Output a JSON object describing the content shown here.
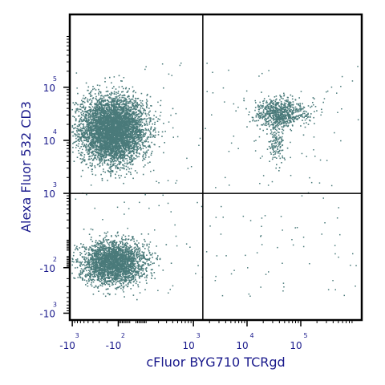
{
  "chart_data": {
    "type": "scatter",
    "title": "",
    "xlabel": "cFluor BYG710 TCRgd",
    "ylabel": "Alexa Fluor 532 CD3",
    "x_scale": "biexponential",
    "y_scale": "biexponential",
    "point_color": "#4a7a7a",
    "frame_color": "#000000",
    "label_color": "#1a1a8c",
    "x_tick_labels": [
      {
        "base": "-10",
        "exp": "3"
      },
      {
        "base": "-10",
        "exp": "2"
      },
      {
        "base": "10",
        "exp": "3"
      },
      {
        "base": "10",
        "exp": "4"
      },
      {
        "base": "10",
        "exp": "5"
      }
    ],
    "y_tick_labels": [
      {
        "base": "-10",
        "exp": "3"
      },
      {
        "base": "-10",
        "exp": "2"
      },
      {
        "base": "10",
        "exp": "3"
      },
      {
        "base": "10",
        "exp": "4"
      },
      {
        "base": "10",
        "exp": "5"
      }
    ],
    "quadrant_gate": {
      "x": 1500,
      "y": 1000
    },
    "populations": [
      {
        "x": -150,
        "y": 16000,
        "events": 5200
      },
      {
        "x": -150,
        "y": -60,
        "events": 2600
      },
      {
        "x": 37000,
        "y": 33000,
        "events": 700
      },
      {
        "x": 34000,
        "y": 9000,
        "events": 120
      },
      {
        "x": 130000,
        "y": 32000,
        "events": 35
      }
    ]
  }
}
